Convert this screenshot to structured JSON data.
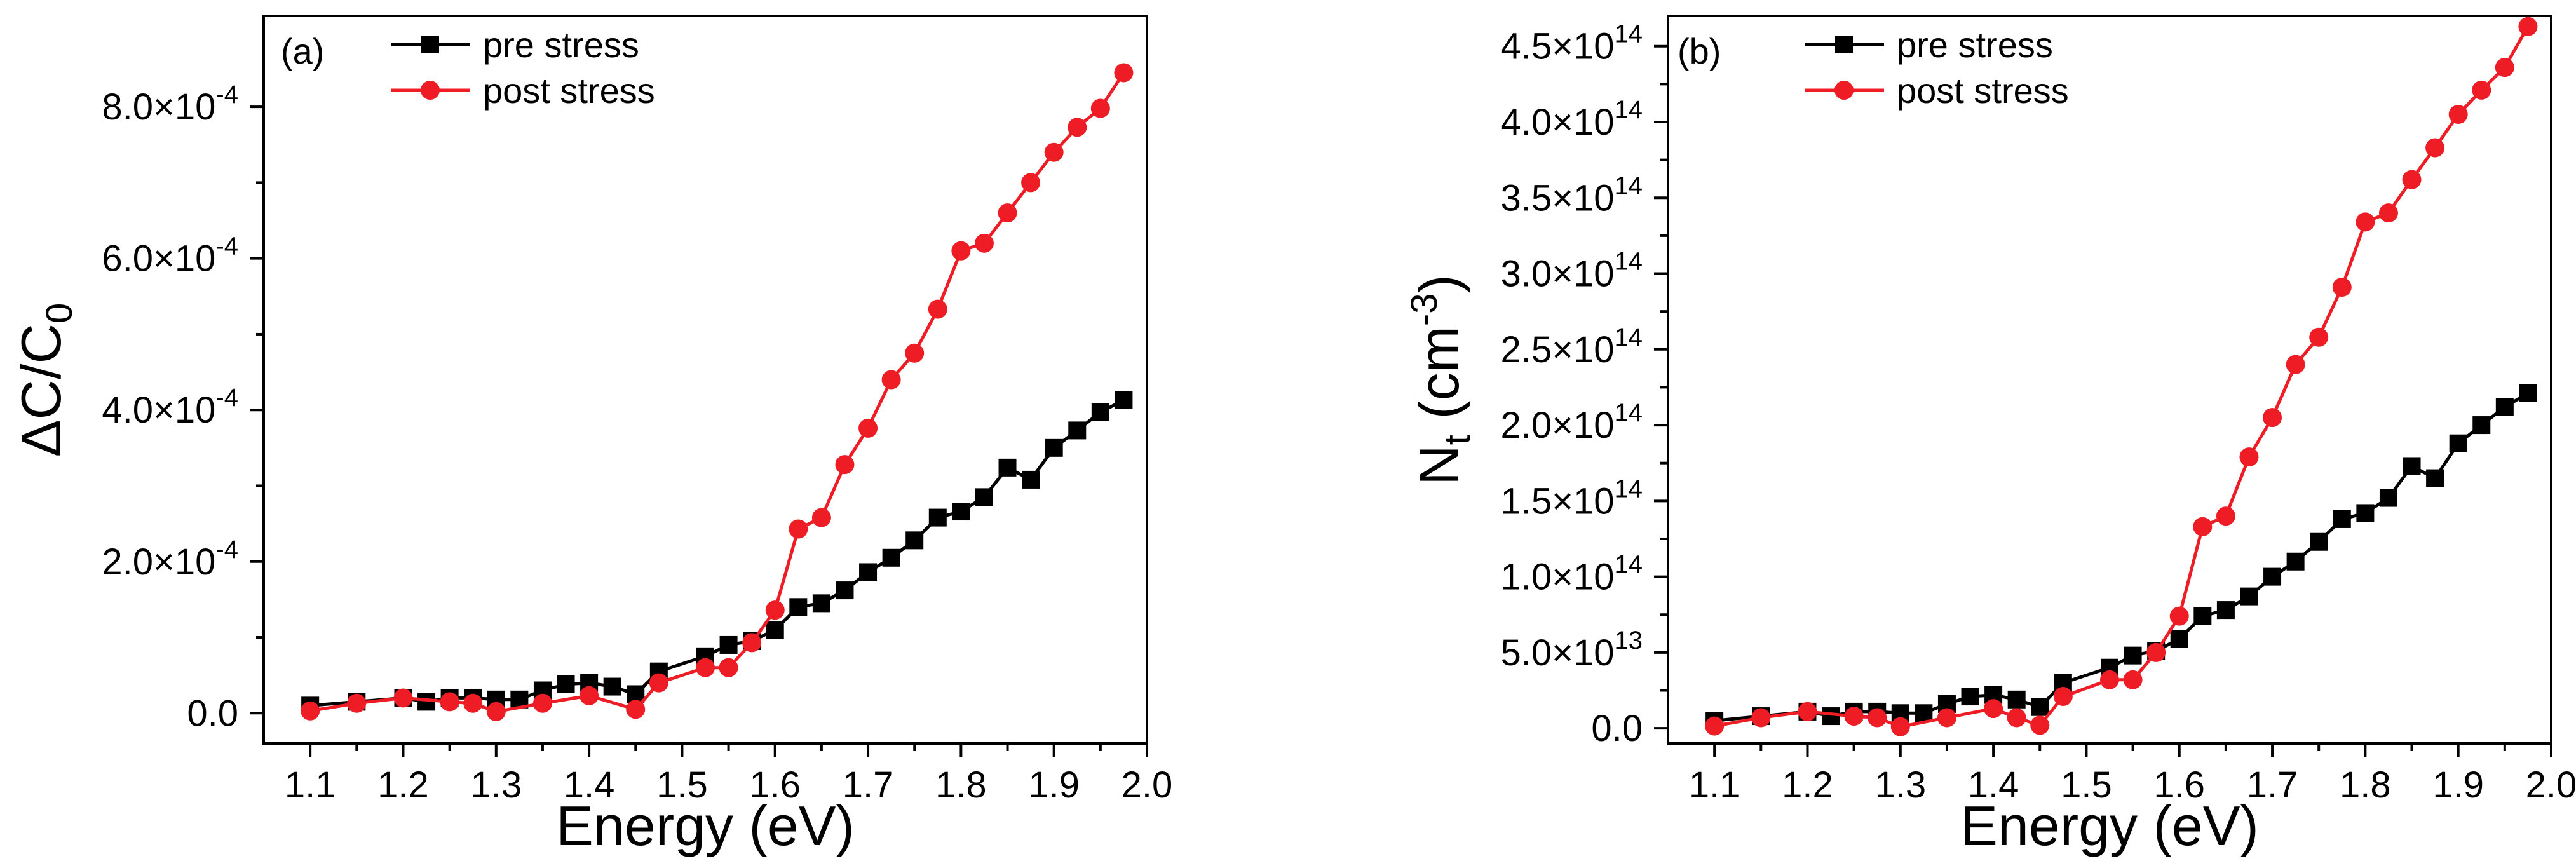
{
  "chart_data": [
    {
      "type": "line",
      "panel_label": "(a)",
      "xlabel": "Energy (eV)",
      "ylabel": {
        "main": "ΔC/C",
        "sub": "0"
      },
      "xlim": [
        1.05,
        2.0
      ],
      "ylim": [
        -4e-05,
        0.00092
      ],
      "xticks": [
        1.1,
        1.2,
        1.3,
        1.4,
        1.5,
        1.6,
        1.7,
        1.8,
        1.9,
        2.0
      ],
      "xtick_labels": [
        "1.1",
        "1.2",
        "1.3",
        "1.4",
        "1.5",
        "1.6",
        "1.7",
        "1.8",
        "1.9",
        "2.0"
      ],
      "yticks": [
        0,
        0.0002,
        0.0004,
        0.0006,
        0.0008
      ],
      "ytick_labels": [
        {
          "mant": "0.0",
          "exp": ""
        },
        {
          "mant": "2.0×10",
          "exp": "-4"
        },
        {
          "mant": "4.0×10",
          "exp": "-4"
        },
        {
          "mant": "6.0×10",
          "exp": "-4"
        },
        {
          "mant": "8.0×10",
          "exp": "-4"
        }
      ],
      "legend_position": "top-left",
      "series": [
        {
          "name": "pre stress",
          "color": "#000000",
          "marker": "square",
          "x": [
            1.1,
            1.15,
            1.2,
            1.225,
            1.25,
            1.275,
            1.3,
            1.325,
            1.35,
            1.375,
            1.4,
            1.425,
            1.45,
            1.475,
            1.525,
            1.55,
            1.575,
            1.6,
            1.625,
            1.65,
            1.675,
            1.7,
            1.725,
            1.75,
            1.775,
            1.8,
            1.825,
            1.85,
            1.875,
            1.9,
            1.925,
            1.95,
            1.975
          ],
          "y": [
            1e-05,
            1.5e-05,
            2e-05,
            1.5e-05,
            2e-05,
            2e-05,
            1.8e-05,
            1.8e-05,
            3e-05,
            3.8e-05,
            4e-05,
            3.5e-05,
            2.5e-05,
            5.5e-05,
            7.5e-05,
            9e-05,
            9.5e-05,
            0.00011,
            0.00014,
            0.000145,
            0.000162,
            0.000186,
            0.000205,
            0.000228,
            0.000258,
            0.000266,
            0.000285,
            0.000324,
            0.000308,
            0.00035,
            0.000373,
            0.000397,
            0.000413
          ]
        },
        {
          "name": "post stress",
          "color": "#ee1c25",
          "marker": "circle",
          "x": [
            1.1,
            1.15,
            1.2,
            1.25,
            1.275,
            1.3,
            1.35,
            1.4,
            1.45,
            1.475,
            1.525,
            1.55,
            1.575,
            1.6,
            1.625,
            1.65,
            1.675,
            1.7,
            1.725,
            1.75,
            1.775,
            1.8,
            1.825,
            1.85,
            1.875,
            1.9,
            1.925,
            1.95,
            1.975
          ],
          "y": [
            3e-06,
            1.3e-05,
            2e-05,
            1.5e-05,
            1.3e-05,
            2e-06,
            1.3e-05,
            2.3e-05,
            5e-06,
            4e-05,
            6e-05,
            6e-05,
            9.3e-05,
            0.000136,
            0.000243,
            0.000258,
            0.000328,
            0.000376,
            0.00044,
            0.000475,
            0.000533,
            0.00061,
            0.00062,
            0.00066,
            0.0007,
            0.00074,
            0.000773,
            0.000798,
            0.000845
          ]
        }
      ]
    },
    {
      "type": "line",
      "panel_label": "(b)",
      "xlabel": "Energy (eV)",
      "ylabel": {
        "main": "N",
        "sub": "t",
        "rest": " (cm",
        "sup": "-3",
        "close": ")"
      },
      "xlim": [
        1.05,
        2.0
      ],
      "ylim": [
        -10000000000000.0,
        470000000000000.0
      ],
      "xticks": [
        1.1,
        1.2,
        1.3,
        1.4,
        1.5,
        1.6,
        1.7,
        1.8,
        1.9,
        2.0
      ],
      "xtick_labels": [
        "1.1",
        "1.2",
        "1.3",
        "1.4",
        "1.5",
        "1.6",
        "1.7",
        "1.8",
        "1.9",
        "2.0"
      ],
      "yticks": [
        0,
        50000000000000.0,
        100000000000000.0,
        150000000000000.0,
        200000000000000.0,
        250000000000000.0,
        300000000000000.0,
        350000000000000.0,
        400000000000000.0,
        450000000000000.0
      ],
      "ytick_labels": [
        {
          "mant": "0.0",
          "exp": ""
        },
        {
          "mant": "5.0×10",
          "exp": "13"
        },
        {
          "mant": "1.0×10",
          "exp": "14"
        },
        {
          "mant": "1.5×10",
          "exp": "14"
        },
        {
          "mant": "2.0×10",
          "exp": "14"
        },
        {
          "mant": "2.5×10",
          "exp": "14"
        },
        {
          "mant": "3.0×10",
          "exp": "14"
        },
        {
          "mant": "3.5×10",
          "exp": "14"
        },
        {
          "mant": "4.0×10",
          "exp": "14"
        },
        {
          "mant": "4.5×10",
          "exp": "14"
        }
      ],
      "legend_position": "top-left",
      "series": [
        {
          "name": "pre stress",
          "color": "#000000",
          "marker": "square",
          "x": [
            1.1,
            1.15,
            1.2,
            1.225,
            1.25,
            1.275,
            1.3,
            1.325,
            1.35,
            1.375,
            1.4,
            1.425,
            1.45,
            1.475,
            1.525,
            1.55,
            1.575,
            1.6,
            1.625,
            1.65,
            1.675,
            1.7,
            1.725,
            1.75,
            1.775,
            1.8,
            1.825,
            1.85,
            1.875,
            1.9,
            1.925,
            1.95,
            1.975
          ],
          "y": [
            5000000000000.0,
            8000000000000.0,
            11000000000000.0,
            8000000000000.0,
            11000000000000.0,
            11000000000000.0,
            10000000000000.0,
            10000000000000.0,
            16000000000000.0,
            21000000000000.0,
            22000000000000.0,
            19000000000000.0,
            14000000000000.0,
            30000000000000.0,
            40000000000000.0,
            48000000000000.0,
            51000000000000.0,
            59000000000000.0,
            74000000000000.0,
            78000000000000.0,
            87000000000000.0,
            100000000000000.0,
            110000000000000.0,
            123000000000000.0,
            138000000000000.0,
            142000000000000.0,
            152000000000000.0,
            173000000000000.0,
            165000000000000.0,
            188000000000000.0,
            200000000000000.0,
            212000000000000.0,
            221000000000000.0
          ]
        },
        {
          "name": "post stress",
          "color": "#ee1c25",
          "marker": "circle",
          "x": [
            1.1,
            1.15,
            1.2,
            1.25,
            1.275,
            1.3,
            1.35,
            1.4,
            1.425,
            1.45,
            1.475,
            1.525,
            1.55,
            1.575,
            1.6,
            1.625,
            1.65,
            1.675,
            1.7,
            1.725,
            1.75,
            1.775,
            1.8,
            1.825,
            1.85,
            1.875,
            1.9,
            1.925,
            1.95,
            1.975
          ],
          "y": [
            1500000000000.0,
            7000000000000.0,
            11000000000000.0,
            8000000000000.0,
            7000000000000.0,
            1000000000000.0,
            7000000000000.0,
            13000000000000.0,
            7000000000000.0,
            2000000000000.0,
            21000000000000.0,
            32000000000000.0,
            32000000000000.0,
            50000000000000.0,
            74000000000000.0,
            133000000000000.0,
            140000000000000.0,
            179000000000000.0,
            205000000000000.0,
            240000000000000.0,
            258000000000000.0,
            291000000000000.0,
            334000000000000.0,
            340000000000000.0,
            362000000000000.0,
            383000000000000.0,
            405000000000000.0,
            421000000000000.0,
            436000000000000.0,
            463000000000000.0
          ]
        }
      ]
    }
  ]
}
